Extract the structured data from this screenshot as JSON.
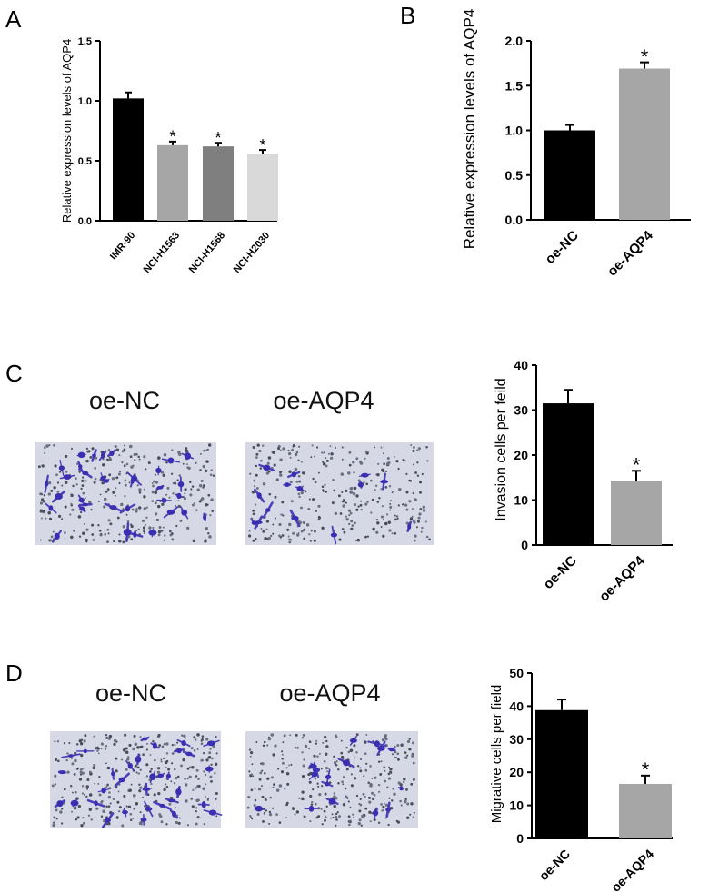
{
  "panels": [
    {
      "letter": "A"
    },
    {
      "letter": "B"
    },
    {
      "letter": "C",
      "image_titles": [
        "oe-NC",
        "oe-AQP4"
      ]
    },
    {
      "letter": "D",
      "image_titles": [
        "oe-NC",
        "oe-AQP4"
      ]
    }
  ],
  "chart_data": [
    {
      "id": "A",
      "type": "bar",
      "categories": [
        "IMR-90",
        "NCI-H1563",
        "NCI-H1568",
        "NCI-H2030"
      ],
      "values": [
        1.02,
        0.63,
        0.62,
        0.56
      ],
      "errors": [
        0.05,
        0.03,
        0.03,
        0.03
      ],
      "significance": [
        "",
        "*",
        "*",
        "*"
      ],
      "colors": [
        "#000000",
        "#a6a6a6",
        "#7f7f7f",
        "#d9d9d9"
      ],
      "ylabel": "Relative expression levels of AQP4",
      "ylim": [
        0,
        1.5
      ],
      "yticks": [
        "0.0",
        "0.5",
        "1.0",
        "1.5"
      ]
    },
    {
      "id": "B",
      "type": "bar",
      "categories": [
        "oe-NC",
        "oe-AQP4"
      ],
      "values": [
        1.0,
        1.69
      ],
      "errors": [
        0.06,
        0.07
      ],
      "significance": [
        "",
        "*"
      ],
      "colors": [
        "#000000",
        "#a6a6a6"
      ],
      "ylabel": "Relative expression levels of AQP4",
      "ylim": [
        0,
        2.0
      ],
      "yticks": [
        "0.0",
        "0.5",
        "1.0",
        "1.5",
        "2.0"
      ]
    },
    {
      "id": "C",
      "type": "bar",
      "categories": [
        "oe-NC",
        "oe-AQP4"
      ],
      "values": [
        31.5,
        14.2
      ],
      "errors": [
        3.0,
        2.3
      ],
      "significance": [
        "",
        "*"
      ],
      "colors": [
        "#000000",
        "#a6a6a6"
      ],
      "ylabel": "Invasion cells per feild",
      "ylim": [
        0,
        40
      ],
      "yticks": [
        "0",
        "10",
        "20",
        "30",
        "40"
      ]
    },
    {
      "id": "D",
      "type": "bar",
      "categories": [
        "oe-NC",
        "oe-AQP4"
      ],
      "values": [
        38.8,
        16.5
      ],
      "errors": [
        3.2,
        2.5
      ],
      "significance": [
        "",
        "*"
      ],
      "colors": [
        "#000000",
        "#a6a6a6"
      ],
      "ylabel": "Migrative cells per field",
      "ylim": [
        0,
        50
      ],
      "yticks": [
        "0",
        "10",
        "20",
        "30",
        "40",
        "50"
      ]
    }
  ]
}
